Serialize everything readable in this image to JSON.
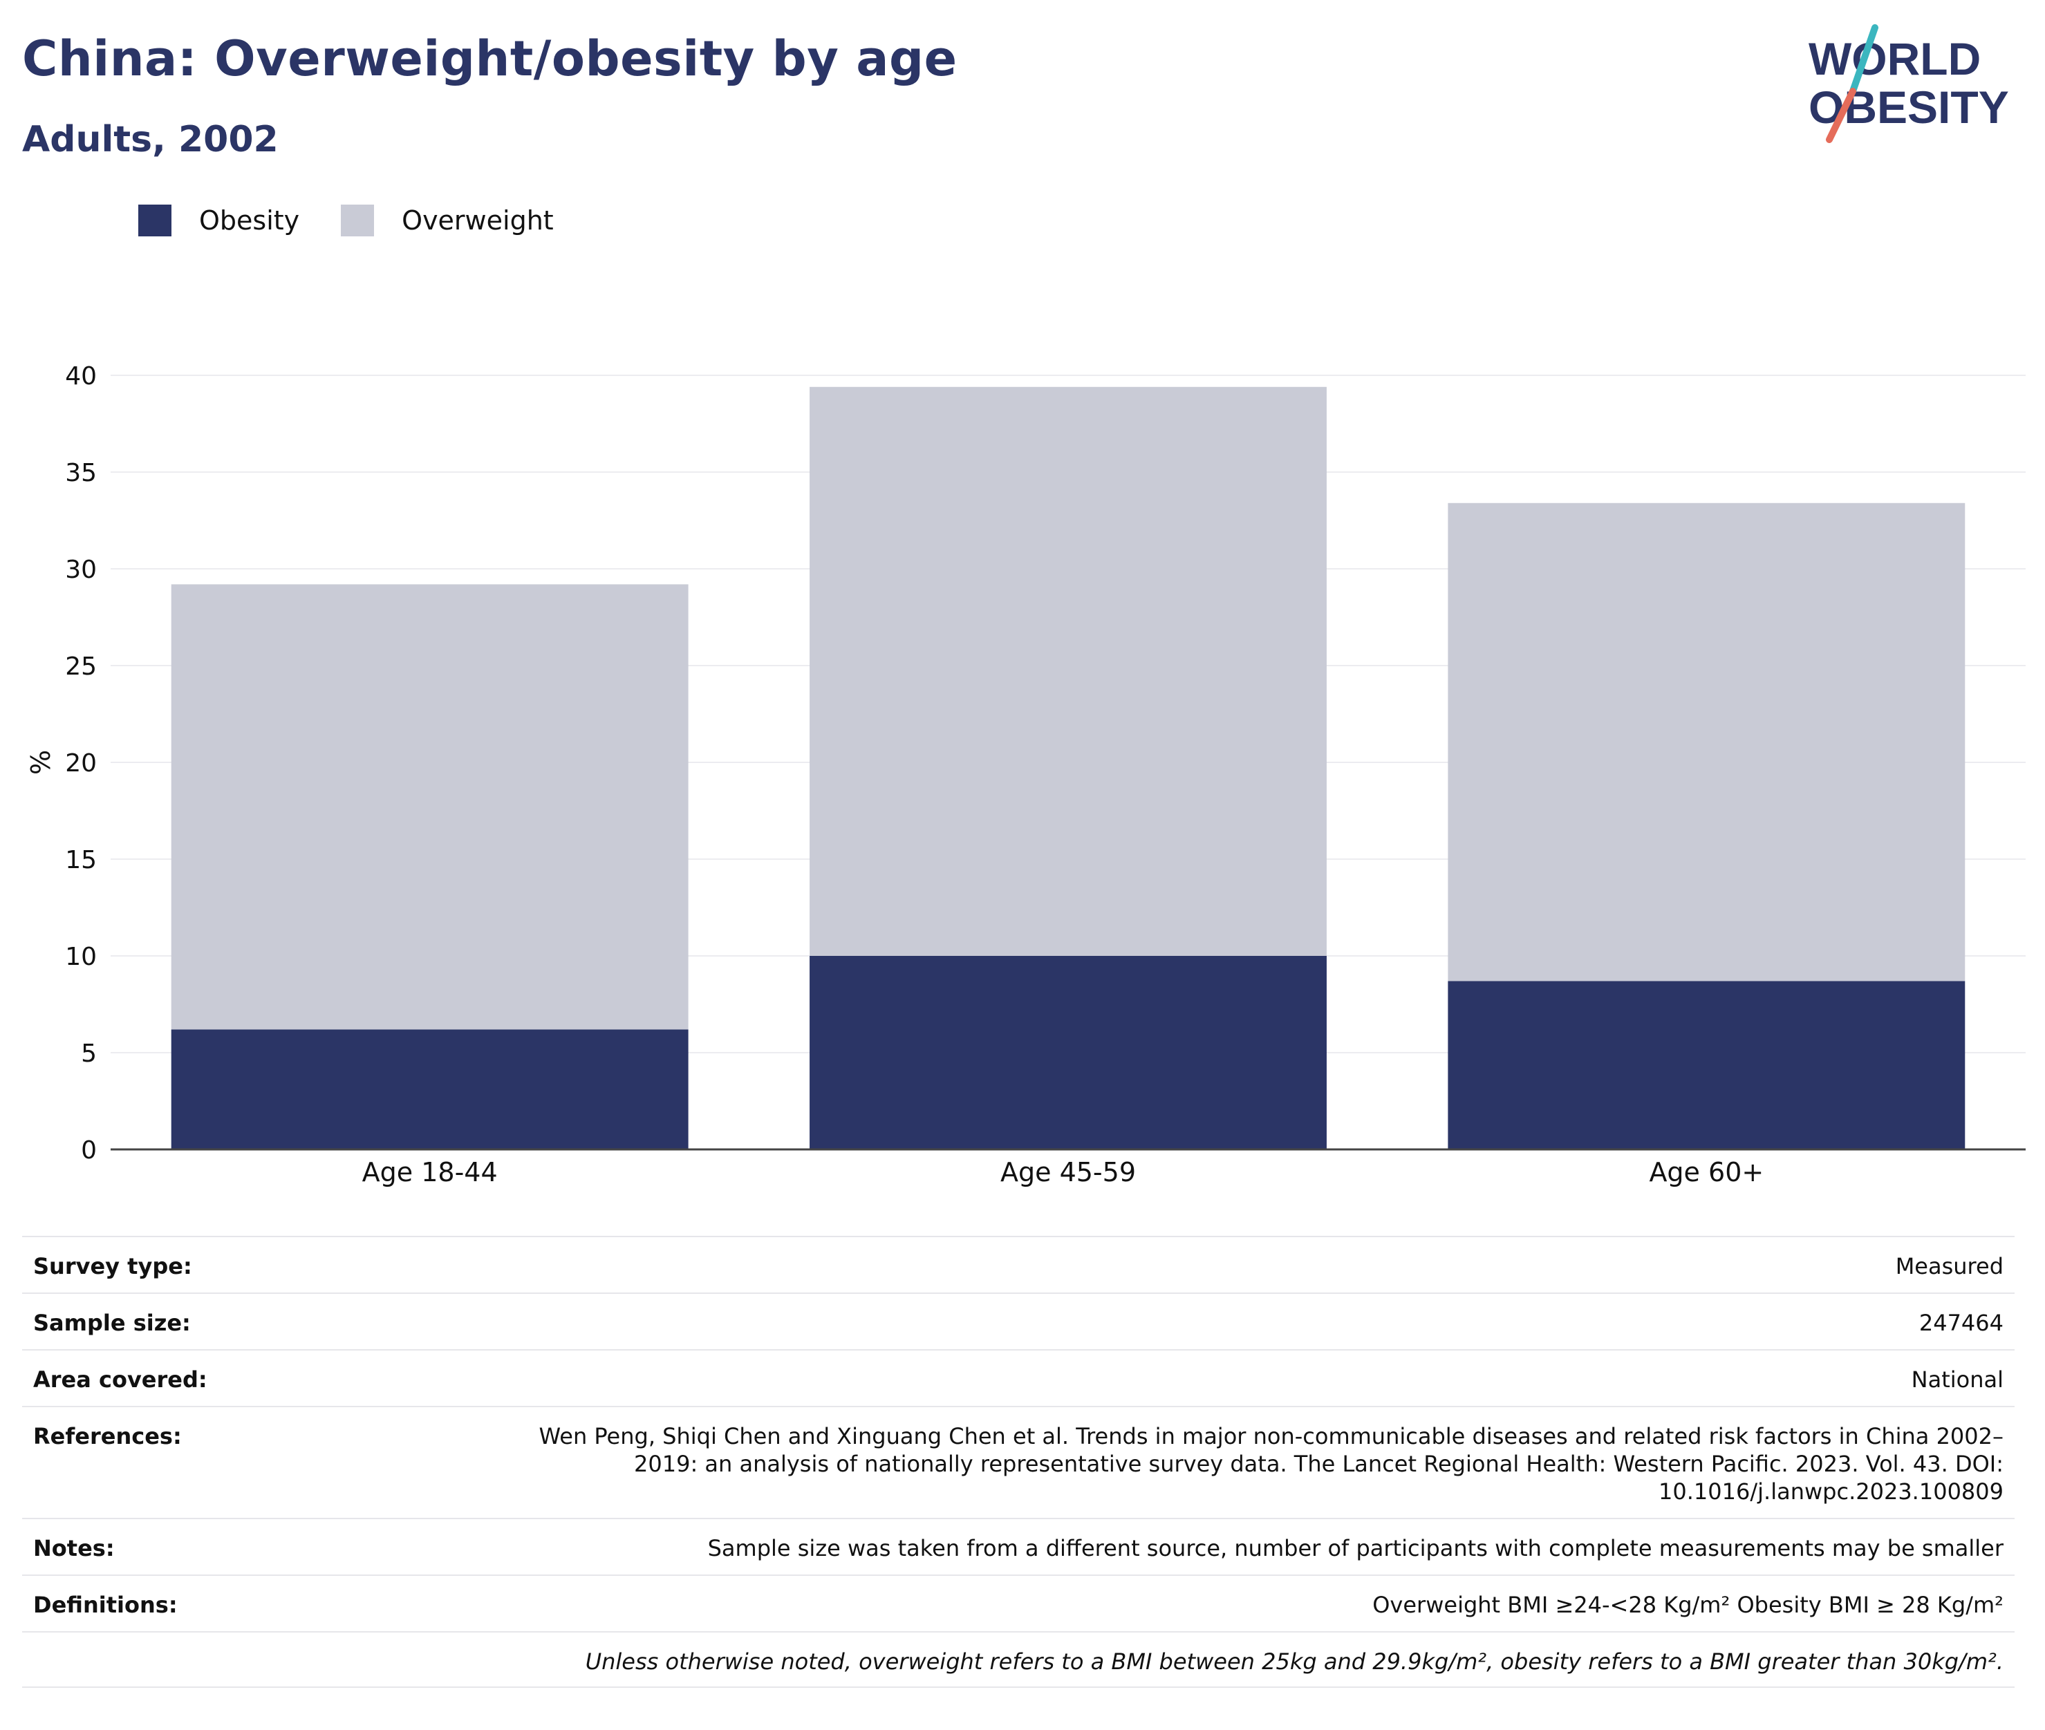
{
  "header": {
    "title": "China: Overweight/obesity by age",
    "subtitle": "Adults, 2002",
    "logo_text": "WORLD OBESITY"
  },
  "colors": {
    "obesity": "#2b3566",
    "overweight": "#c9cbd6",
    "title": "#2b3566",
    "logo_teal": "#3bb6bf",
    "logo_coral": "#e56c5a",
    "grid": "#ececf0",
    "axis": "#444444"
  },
  "legend": [
    {
      "label": "Obesity",
      "color": "#2b3566"
    },
    {
      "label": "Overweight",
      "color": "#c9cbd6"
    }
  ],
  "chart_data": {
    "type": "bar",
    "stacked": true,
    "categories": [
      "Age 18-44",
      "Age 45-59",
      "Age 60+"
    ],
    "series": [
      {
        "name": "Obesity",
        "values": [
          6.2,
          10.0,
          8.7
        ],
        "color": "#2b3566"
      },
      {
        "name": "Overweight",
        "values": [
          23.0,
          29.4,
          24.7
        ],
        "color": "#c9cbd6"
      }
    ],
    "ylabel": "%",
    "ylim": [
      0,
      40
    ],
    "yticks": [
      0,
      5,
      10,
      15,
      20,
      25,
      30,
      35,
      40
    ],
    "grid": true,
    "legend_position": "top-left"
  },
  "info": [
    {
      "label": "Survey type:",
      "value": "Measured"
    },
    {
      "label": "Sample size:",
      "value": "247464"
    },
    {
      "label": "Area covered:",
      "value": "National"
    },
    {
      "label": "References:",
      "value": "Wen Peng, Shiqi Chen and Xinguang Chen et al. Trends in major non-communicable diseases and related risk factors in China 2002–2019: an analysis of nationally representative survey data. The Lancet Regional Health: Western Pacific. 2023. Vol. 43. DOI: 10.1016/j.lanwpc.2023.100809"
    },
    {
      "label": "Notes:",
      "value": "Sample size was taken from a different source, number of participants with complete measurements may be smaller"
    },
    {
      "label": "Definitions:",
      "value": "Overweight BMI ≥24-<28 Kg/m² Obesity BMI ≥ 28 Kg/m²"
    },
    {
      "label": "",
      "value": "Unless otherwise noted, overweight refers to a BMI between 25kg and 29.9kg/m², obesity refers to a BMI greater than 30kg/m²."
    }
  ]
}
